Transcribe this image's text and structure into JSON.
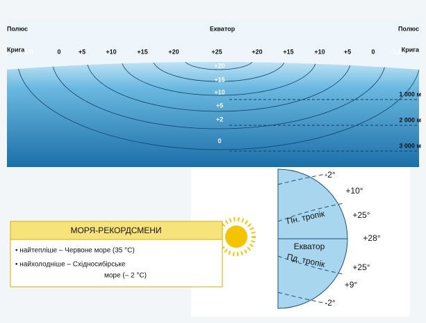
{
  "header": {
    "left_pole": "Полюс",
    "equator": "Екватор",
    "right_pole": "Полюс",
    "left_ice": "Крига",
    "right_ice": "Крига"
  },
  "surface_temperatures": [
    "-1,8",
    "0",
    "+5",
    "+10",
    "+15",
    "+20",
    "+25",
    "+20",
    "+15",
    "+10",
    "+5",
    "0",
    "-1,8"
  ],
  "depth_temperatures": [
    "+20",
    "+15",
    "+10",
    "+5",
    "+2",
    "0"
  ],
  "depths": [
    "1 000 м",
    "2 000 м",
    "3 000 м"
  ],
  "record_box": {
    "title": "МОРЯ-РЕКОРДСМЕНИ",
    "items": [
      "• найтепліше – Червоне море (35 °С)",
      "• найхолодніше – Східносибірське",
      "море (– 2 °С)"
    ]
  },
  "globe": {
    "temperatures": [
      "-2°",
      "+10°",
      "+25°",
      "+28°",
      "+25°",
      "+9°",
      "-2°"
    ],
    "north_tropic": "Пн. тропік",
    "equator": "Екватор",
    "south_tropic": "Пд. тропік"
  }
}
